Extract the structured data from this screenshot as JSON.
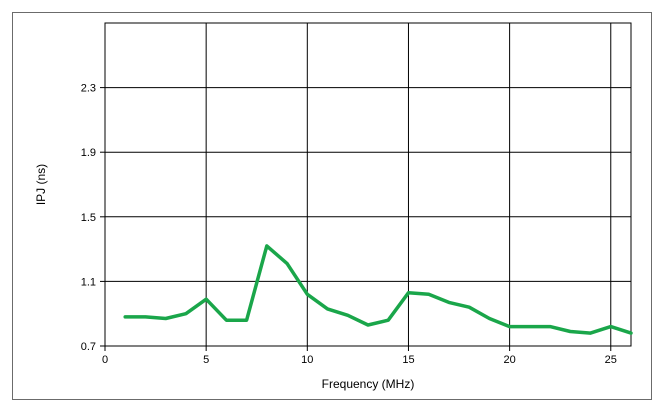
{
  "chart_data": {
    "type": "line",
    "xlabel": "Frequency (MHz)",
    "ylabel": "IPJ (ns)",
    "xlim": [
      0,
      26
    ],
    "ylim": [
      0.7,
      2.7
    ],
    "xticks": [
      0,
      5,
      10,
      15,
      20,
      25
    ],
    "yticks": [
      0.7,
      1.1,
      1.5,
      1.9,
      2.3
    ],
    "xtick_labels": [
      "0",
      "5",
      "10",
      "15",
      "20",
      "25"
    ],
    "ytick_labels": [
      "0.7",
      "1.1",
      "1.5",
      "1.9",
      "2.3"
    ],
    "grid": true,
    "series": [
      {
        "color": "#1aa64a",
        "x": [
          1,
          2,
          3,
          4,
          5,
          6,
          7,
          8,
          9,
          10,
          11,
          12,
          13,
          14,
          15,
          16,
          17,
          18,
          19,
          20,
          21,
          22,
          23,
          24,
          25,
          26
        ],
        "y": [
          0.88,
          0.88,
          0.87,
          0.9,
          0.99,
          0.86,
          0.86,
          1.32,
          1.21,
          1.02,
          0.93,
          0.89,
          0.83,
          0.86,
          1.03,
          1.02,
          0.97,
          0.94,
          0.87,
          0.82,
          0.82,
          0.82,
          0.79,
          0.78,
          0.82,
          0.78
        ]
      }
    ]
  }
}
